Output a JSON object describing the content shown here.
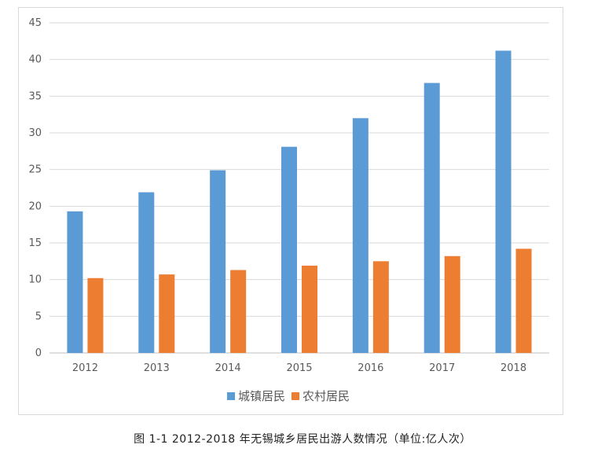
{
  "chart_data": {
    "type": "bar",
    "categories": [
      "2012",
      "2013",
      "2014",
      "2015",
      "2016",
      "2017",
      "2018"
    ],
    "series": [
      {
        "name": "城镇居民",
        "color": "#5b9bd5",
        "values": [
          19.3,
          21.9,
          24.9,
          28.1,
          32.0,
          36.8,
          41.2
        ]
      },
      {
        "name": "农村居民",
        "color": "#ed7d31",
        "values": [
          10.2,
          10.7,
          11.3,
          11.9,
          12.5,
          13.2,
          14.2
        ]
      }
    ],
    "ylim": [
      0,
      45
    ],
    "yticks": [
      0,
      5,
      10,
      15,
      20,
      25,
      30,
      35,
      40,
      45
    ],
    "grid": true,
    "legend_position": "bottom"
  },
  "caption": "图 1-1 2012-2018 年无锡城乡居民出游人数情况（单位:亿人次）"
}
